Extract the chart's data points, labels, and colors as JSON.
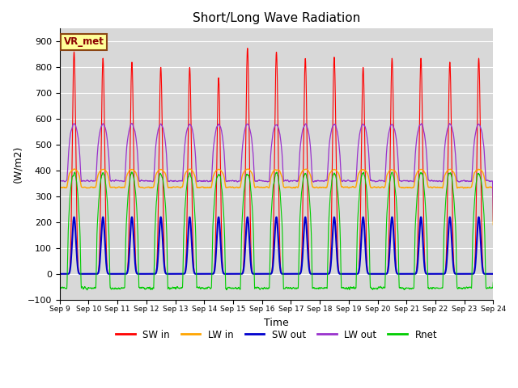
{
  "title": "Short/Long Wave Radiation",
  "ylabel": "(W/m2)",
  "xlabel": "Time",
  "ylim": [
    -100,
    950
  ],
  "yticks": [
    -100,
    0,
    100,
    200,
    300,
    400,
    500,
    600,
    700,
    800,
    900
  ],
  "num_days": 15,
  "points_per_day": 144,
  "colors": {
    "SW_in": "#ff0000",
    "LW_in": "#ffa500",
    "SW_out": "#0000cd",
    "LW_out": "#9932cc",
    "Rnet": "#00cc00"
  },
  "legend_labels": [
    "SW in",
    "LW in",
    "SW out",
    "LW out",
    "Rnet"
  ],
  "background_color": "#d8d8d8",
  "annotation_text": "VR_met",
  "annotation_facecolor": "#ffff99",
  "annotation_edgecolor": "#8B4513"
}
